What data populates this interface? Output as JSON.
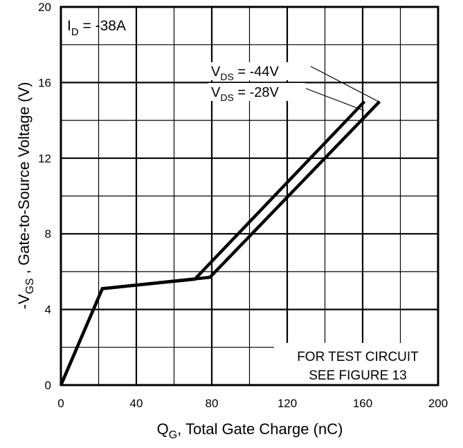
{
  "chart_data": {
    "type": "line",
    "xlabel": {
      "main": "Q",
      "sub": "G",
      "rest": ", Total Gate Charge (nC)"
    },
    "ylabel": {
      "pre": "-V",
      "sub": "GS",
      "rest": " , Gate-to-Source Voltage (V)"
    },
    "xlim": [
      0,
      200
    ],
    "ylim": [
      0,
      20
    ],
    "x_ticks": [
      0,
      40,
      80,
      120,
      160,
      200
    ],
    "y_ticks": [
      0,
      4,
      8,
      12,
      16,
      20
    ],
    "grid": true,
    "series": [
      {
        "name": "V_DS = -44V",
        "points": [
          [
            0,
            0
          ],
          [
            22,
            5.1
          ],
          [
            79,
            5.7
          ],
          [
            169,
            15.0
          ]
        ]
      },
      {
        "name": "V_DS = -28V",
        "points": [
          [
            0,
            0
          ],
          [
            22,
            5.1
          ],
          [
            71,
            5.6
          ],
          [
            161,
            15.0
          ]
        ]
      }
    ],
    "annotations": {
      "current": {
        "pre": "I",
        "sub": "D",
        "rest": " = -38A"
      },
      "vds_44": {
        "pre": "V",
        "sub": "DS",
        "rest": "  = -44V"
      },
      "vds_28": {
        "pre": "V",
        "sub": "DS",
        "rest": "  = -28V"
      },
      "test_circuit_line1": "FOR TEST CIRCUIT",
      "test_circuit_line2": "SEE FIGURE 13"
    }
  }
}
